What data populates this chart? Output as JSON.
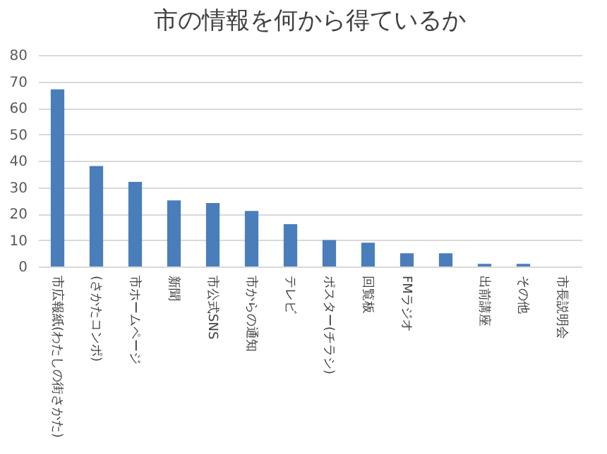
{
  "chart_data": {
    "type": "bar",
    "title": "市の情報を何から得ているか",
    "categories": [
      "市広報紙(わたしの街さかた)",
      "(さかたコンポ)",
      "市ホームページ",
      "新聞",
      "市公式SNS",
      "市からの通知",
      "テレビ",
      "ポスター(チラシ)",
      "回覧板",
      "FMラジオ",
      null,
      "出前講座",
      "その他",
      "市長説明会"
    ],
    "values": [
      67,
      38,
      32,
      25,
      24,
      21,
      16,
      10,
      9,
      5,
      5,
      1,
      1,
      0
    ],
    "color": "#4a7ebb",
    "ylim": [
      0,
      80
    ],
    "yticks": [
      0,
      10,
      20,
      30,
      40,
      50,
      60,
      70,
      80
    ],
    "grid": "y"
  }
}
